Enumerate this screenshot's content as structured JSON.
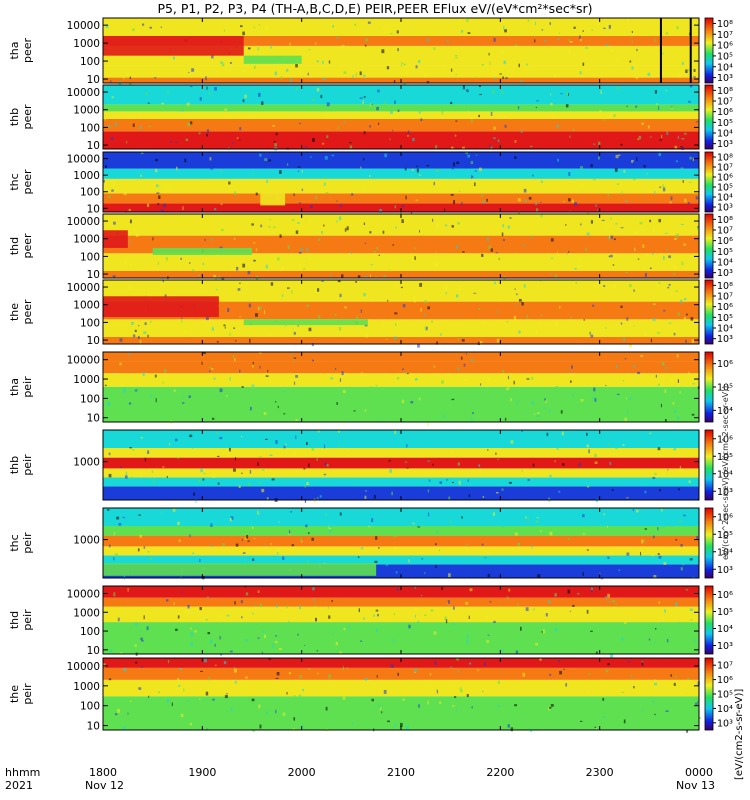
{
  "title": "P5, P1, P2, P3, P4 (TH-A,B,C,D,E) PEIR,PEER EFlux eV/(eV*cm²*sec*sr)",
  "colorbar_unit": "[eV/(cm2-s-sr-eV)]",
  "colorbar_unit_overlap": "eV/(cm^2-sec-sr-eV) (eV/(cm^2-sec-sr-eV))",
  "footer": {
    "row1_label": "hhmm",
    "row2_label": "2021",
    "start_day": "Nov 12",
    "end_day": "Nov 13"
  },
  "colors": {
    "red": "#e01818",
    "orange": "#f57a14",
    "yellow": "#f0e620",
    "green": "#5ee050",
    "cyan": "#18d8d8",
    "blue": "#1a3cd8",
    "black": "#000000"
  },
  "chart_data": {
    "type": "heatmap",
    "x": {
      "tick_labels": [
        "1800",
        "1900",
        "2000",
        "2100",
        "2200",
        "2300",
        "0000"
      ],
      "range": [
        "1800",
        "0000"
      ]
    },
    "panels": [
      {
        "name": "tha peer",
        "probe": "tha",
        "product": "peer",
        "y_ticks": [
          "10",
          "100",
          "1000",
          "10000"
        ],
        "yrange": [
          6,
          25000
        ],
        "scale": "log",
        "colorbar_ticks": [
          "10³",
          "10⁴",
          "10⁵",
          "10⁶",
          "10⁷",
          "10⁸"
        ],
        "bands": [
          {
            "ylo": 6,
            "yhi": 12,
            "color": "orange"
          },
          {
            "ylo": 12,
            "yhi": 60,
            "color": "yellow"
          },
          {
            "ylo": 60,
            "yhi": 700,
            "color": "yellow"
          },
          {
            "ylo": 700,
            "yhi": 2500,
            "color": "orange"
          },
          {
            "ylo": 2500,
            "yhi": 25000,
            "color": "yellow"
          }
        ],
        "features": [
          {
            "x0": 1800,
            "x1": 1885,
            "ylo": 200,
            "yhi": 2500,
            "color": "red"
          },
          {
            "x0": 1885,
            "x1": 2000,
            "ylo": 70,
            "yhi": 200,
            "color": "green"
          }
        ],
        "markers": [
          2337,
          2355
        ]
      },
      {
        "name": "thb peer",
        "probe": "thb",
        "product": "peer",
        "y_ticks": [
          "10",
          "100",
          "1000",
          "10000"
        ],
        "yrange": [
          6,
          25000
        ],
        "scale": "log",
        "colorbar_ticks": [
          "10³",
          "10⁴",
          "10⁵",
          "10⁶",
          "10⁷",
          "10⁸"
        ],
        "bands": [
          {
            "ylo": 6,
            "yhi": 60,
            "color": "red"
          },
          {
            "ylo": 60,
            "yhi": 300,
            "color": "orange"
          },
          {
            "ylo": 300,
            "yhi": 800,
            "color": "yellow"
          },
          {
            "ylo": 800,
            "yhi": 2000,
            "color": "green"
          },
          {
            "ylo": 2000,
            "yhi": 25000,
            "color": "cyan"
          }
        ],
        "features": [],
        "markers": []
      },
      {
        "name": "thc peer",
        "probe": "thc",
        "product": "peer",
        "y_ticks": [
          "10",
          "100",
          "1000",
          "10000"
        ],
        "yrange": [
          6,
          25000
        ],
        "scale": "log",
        "colorbar_ticks": [
          "10³",
          "10⁴",
          "10⁵",
          "10⁶",
          "10⁷",
          "10⁸"
        ],
        "bands": [
          {
            "ylo": 6,
            "yhi": 20,
            "color": "red"
          },
          {
            "ylo": 20,
            "yhi": 80,
            "color": "orange"
          },
          {
            "ylo": 80,
            "yhi": 600,
            "color": "yellow"
          },
          {
            "ylo": 600,
            "yhi": 2500,
            "color": "cyan"
          },
          {
            "ylo": 2500,
            "yhi": 25000,
            "color": "blue"
          }
        ],
        "features": [
          {
            "x0": 1895,
            "x1": 1950,
            "ylo": 15,
            "yhi": 80,
            "color": "yellow"
          }
        ],
        "markers": []
      },
      {
        "name": "thd peer",
        "probe": "thd",
        "product": "peer",
        "y_ticks": [
          "10",
          "100",
          "1000",
          "10000"
        ],
        "yrange": [
          6,
          25000
        ],
        "scale": "log",
        "colorbar_ticks": [
          "10³",
          "10⁴",
          "10⁵",
          "10⁶",
          "10⁷",
          "10⁸"
        ],
        "bands": [
          {
            "ylo": 6,
            "yhi": 15,
            "color": "orange"
          },
          {
            "ylo": 15,
            "yhi": 150,
            "color": "yellow"
          },
          {
            "ylo": 150,
            "yhi": 1500,
            "color": "orange"
          },
          {
            "ylo": 1500,
            "yhi": 25000,
            "color": "yellow"
          }
        ],
        "features": [
          {
            "x0": 1800,
            "x1": 1815,
            "ylo": 300,
            "yhi": 3000,
            "color": "red"
          },
          {
            "x0": 1830,
            "x1": 1930,
            "ylo": 120,
            "yhi": 300,
            "color": "green"
          }
        ],
        "markers": []
      },
      {
        "name": "the peer",
        "probe": "the",
        "product": "peer",
        "y_ticks": [
          "10",
          "100",
          "1000",
          "10000"
        ],
        "yrange": [
          6,
          25000
        ],
        "scale": "log",
        "colorbar_ticks": [
          "10³",
          "10⁴",
          "10⁵",
          "10⁶",
          "10⁷",
          "10⁸"
        ],
        "bands": [
          {
            "ylo": 6,
            "yhi": 15,
            "color": "orange"
          },
          {
            "ylo": 15,
            "yhi": 150,
            "color": "yellow"
          },
          {
            "ylo": 150,
            "yhi": 1500,
            "color": "orange"
          },
          {
            "ylo": 1500,
            "yhi": 25000,
            "color": "yellow"
          }
        ],
        "features": [
          {
            "x0": 1800,
            "x1": 1870,
            "ylo": 200,
            "yhi": 3000,
            "color": "red"
          },
          {
            "x0": 1885,
            "x1": 2040,
            "ylo": 70,
            "yhi": 150,
            "color": "green"
          }
        ],
        "markers": []
      },
      {
        "name": "tha peir",
        "probe": "tha",
        "product": "peir",
        "y_ticks": [
          "10",
          "100",
          "1000",
          "10000"
        ],
        "yrange": [
          6,
          25000
        ],
        "scale": "log",
        "colorbar_ticks": [
          "10⁴",
          "10⁵",
          "10⁶"
        ],
        "bands": [
          {
            "ylo": 6,
            "yhi": 400,
            "color": "green"
          },
          {
            "ylo": 400,
            "yhi": 2000,
            "color": "yellow"
          },
          {
            "ylo": 2000,
            "yhi": 8000,
            "color": "orange"
          },
          {
            "ylo": 8000,
            "yhi": 25000,
            "color": "orange"
          }
        ],
        "features": [],
        "markers": []
      },
      {
        "name": "thb peir",
        "probe": "thb",
        "product": "peir",
        "y_ticks": [
          "1000"
        ],
        "yrange": [
          20,
          25000
        ],
        "scale": "log",
        "colorbar_ticks": [
          "10³",
          "10⁴",
          "10⁵",
          "10⁶"
        ],
        "bands": [
          {
            "ylo": 20,
            "yhi": 80,
            "color": "blue"
          },
          {
            "ylo": 80,
            "yhi": 200,
            "color": "cyan"
          },
          {
            "ylo": 200,
            "yhi": 500,
            "color": "yellow"
          },
          {
            "ylo": 500,
            "yhi": 1500,
            "color": "red"
          },
          {
            "ylo": 1500,
            "yhi": 4000,
            "color": "yellow"
          },
          {
            "ylo": 4000,
            "yhi": 25000,
            "color": "cyan"
          }
        ],
        "features": [],
        "markers": []
      },
      {
        "name": "thc peir",
        "probe": "thc",
        "product": "peir",
        "y_ticks": [
          "1000"
        ],
        "yrange": [
          20,
          25000
        ],
        "scale": "log",
        "colorbar_ticks": [
          "10³",
          "10⁴",
          "10⁵",
          "10⁶"
        ],
        "bands": [
          {
            "ylo": 20,
            "yhi": 80,
            "color": "blue"
          },
          {
            "ylo": 80,
            "yhi": 200,
            "color": "cyan"
          },
          {
            "ylo": 200,
            "yhi": 500,
            "color": "yellow"
          },
          {
            "ylo": 500,
            "yhi": 1500,
            "color": "orange"
          },
          {
            "ylo": 1500,
            "yhi": 4000,
            "color": "green"
          },
          {
            "ylo": 4000,
            "yhi": 25000,
            "color": "cyan"
          }
        ],
        "features": [
          {
            "x0": 1800,
            "x1": 2045,
            "ylo": 25,
            "yhi": 90,
            "color": "green"
          }
        ],
        "markers": []
      },
      {
        "name": "thd peir",
        "probe": "thd",
        "product": "peir",
        "y_ticks": [
          "10",
          "100",
          "1000",
          "10000"
        ],
        "yrange": [
          6,
          25000
        ],
        "scale": "log",
        "colorbar_ticks": [
          "10³",
          "10⁴",
          "10⁵",
          "10⁶"
        ],
        "bands": [
          {
            "ylo": 6,
            "yhi": 300,
            "color": "green"
          },
          {
            "ylo": 300,
            "yhi": 2000,
            "color": "yellow"
          },
          {
            "ylo": 2000,
            "yhi": 6000,
            "color": "orange"
          },
          {
            "ylo": 6000,
            "yhi": 25000,
            "color": "red"
          }
        ],
        "features": [],
        "markers": []
      },
      {
        "name": "the peir",
        "probe": "the",
        "product": "peir",
        "y_ticks": [
          "10",
          "100",
          "1000",
          "10000"
        ],
        "yrange": [
          6,
          25000
        ],
        "scale": "log",
        "colorbar_ticks": [
          "10³",
          "10⁴",
          "10⁵",
          "10⁶",
          "10⁷"
        ],
        "bands": [
          {
            "ylo": 6,
            "yhi": 300,
            "color": "green"
          },
          {
            "ylo": 300,
            "yhi": 2000,
            "color": "yellow"
          },
          {
            "ylo": 2000,
            "yhi": 8000,
            "color": "orange"
          },
          {
            "ylo": 8000,
            "yhi": 25000,
            "color": "red"
          }
        ],
        "features": [],
        "markers": []
      }
    ]
  }
}
